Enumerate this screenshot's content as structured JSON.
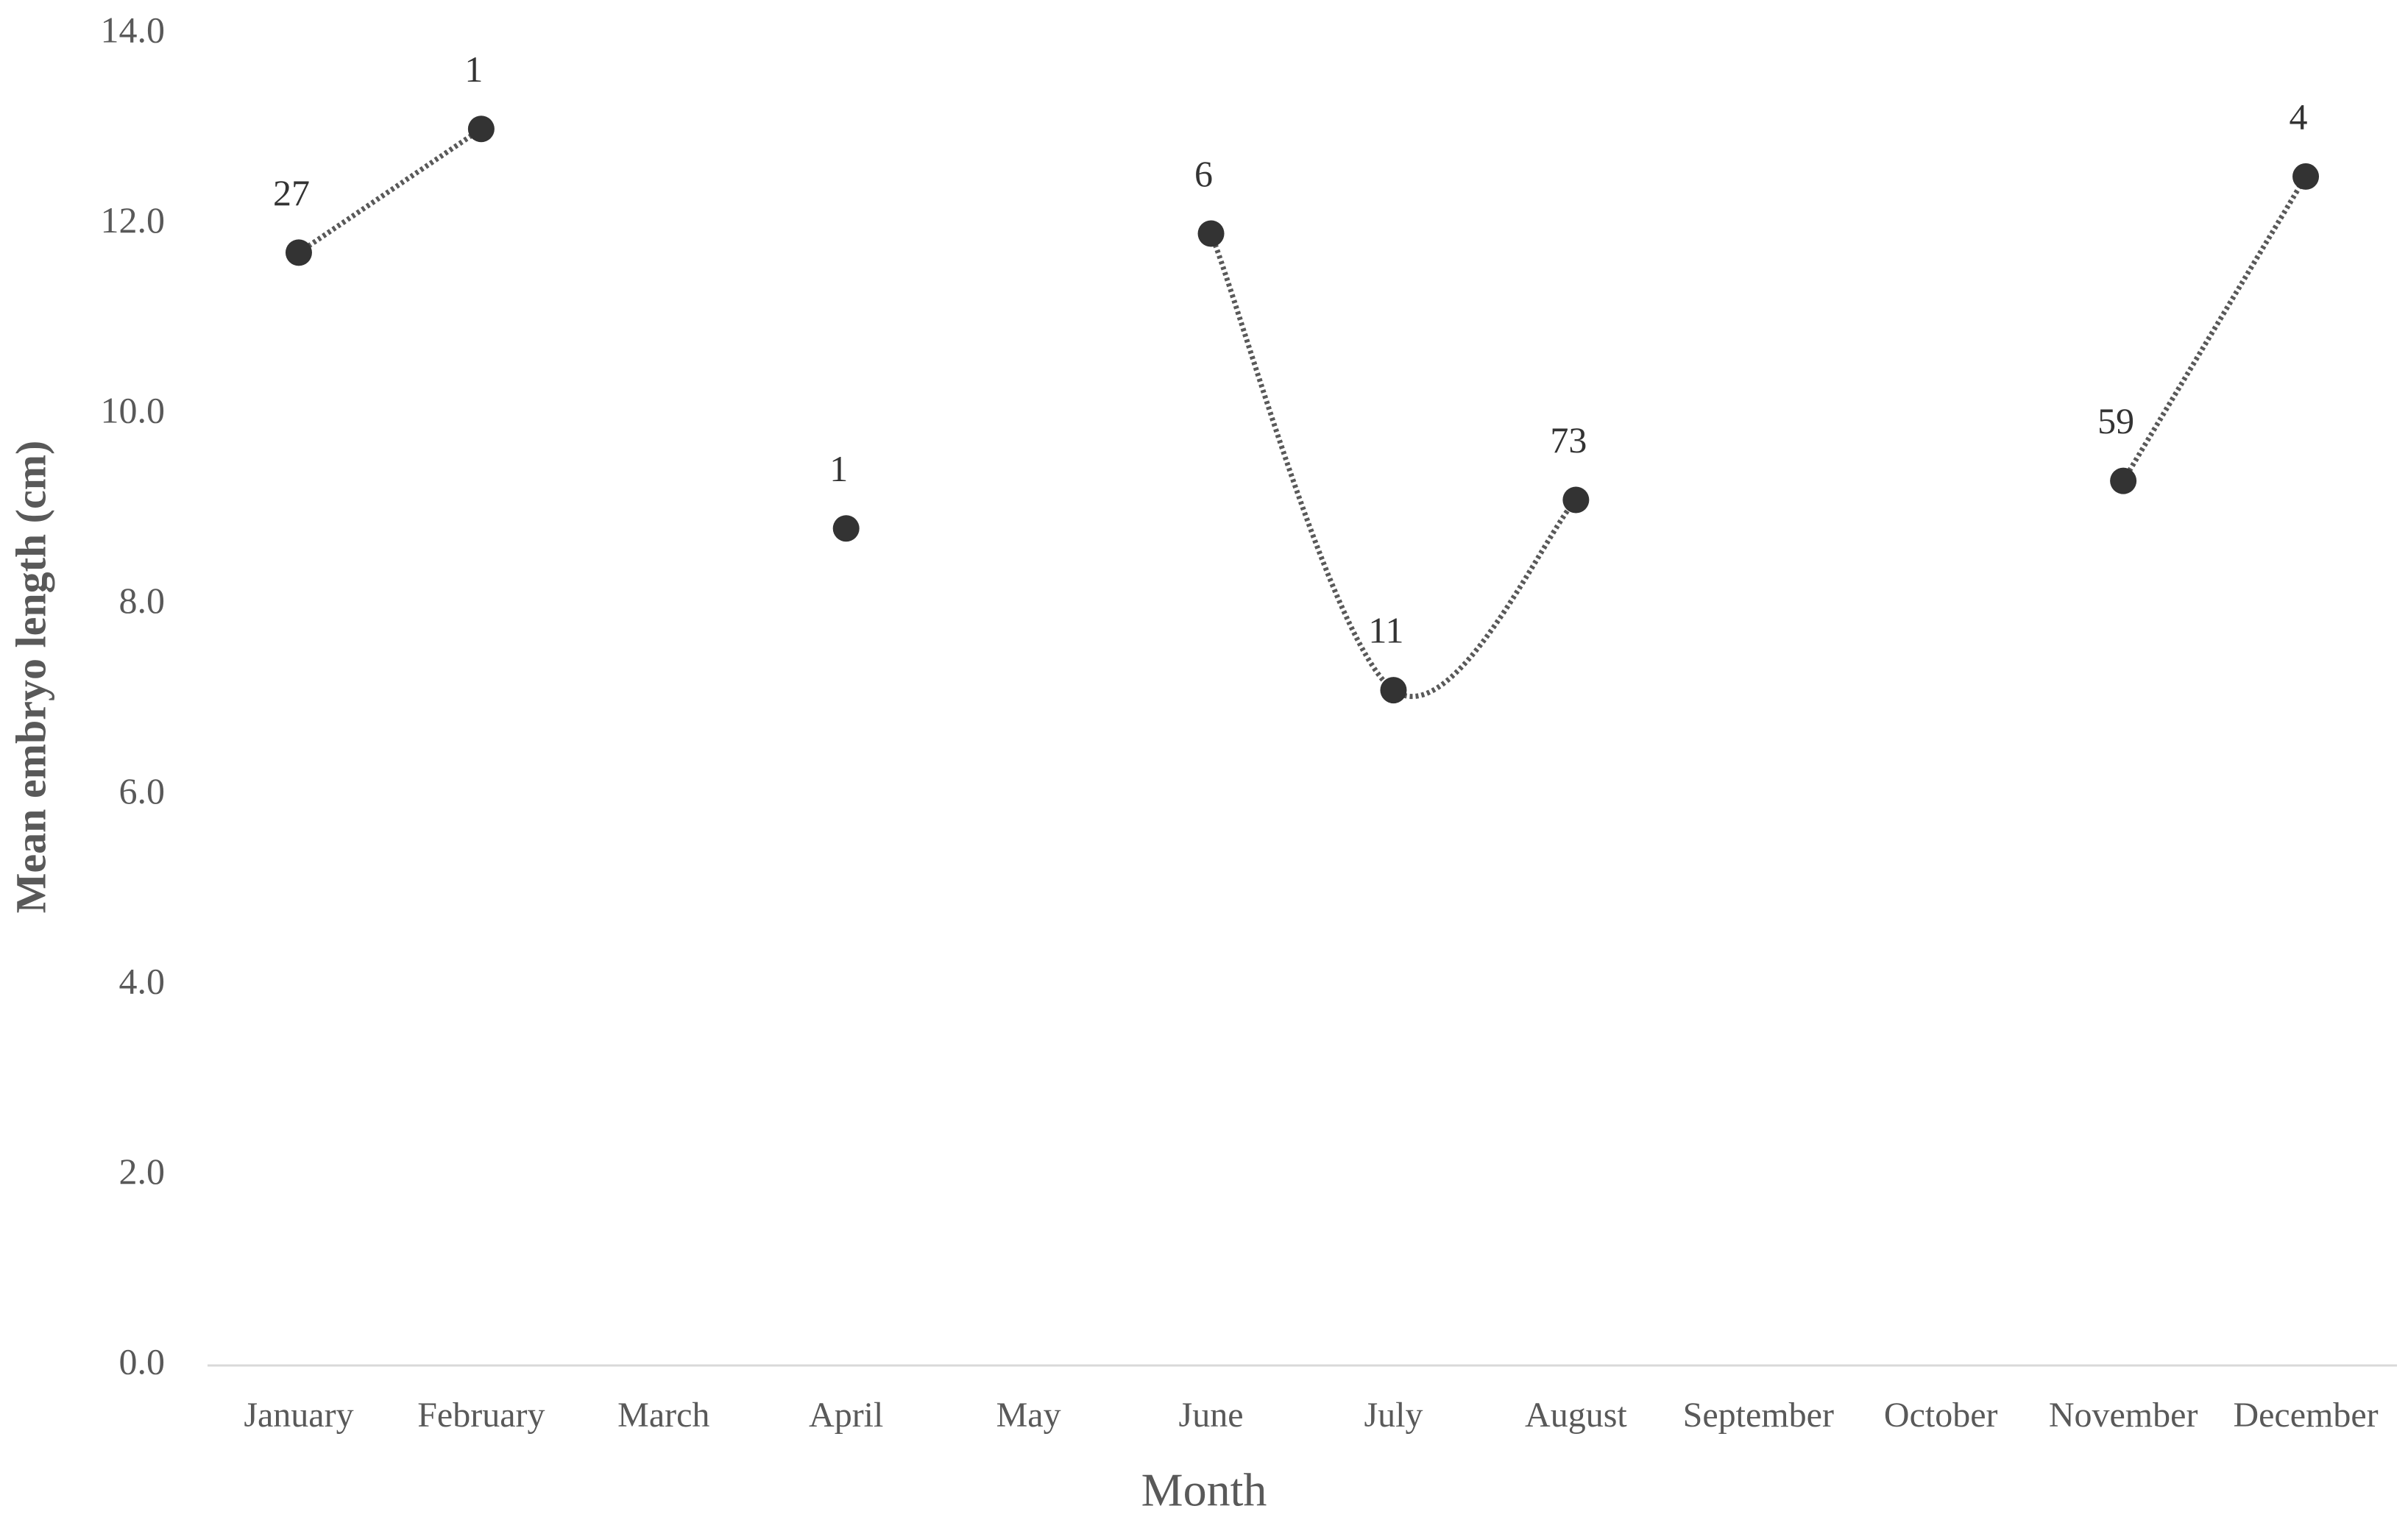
{
  "chart_data": {
    "type": "line",
    "x_label": "Month",
    "y_label": "Mean embryo length (cm)",
    "categories": [
      "January",
      "February",
      "March",
      "April",
      "May",
      "June",
      "July",
      "August",
      "September",
      "October",
      "November",
      "December"
    ],
    "series": [
      {
        "name": "Mean embryo length",
        "color": "#333333",
        "values": [
          11.7,
          13.0,
          null,
          8.8,
          null,
          11.9,
          7.1,
          9.1,
          null,
          null,
          9.3,
          12.5
        ]
      }
    ],
    "sample_sizes": [
      27,
      1,
      null,
      1,
      null,
      6,
      11,
      73,
      null,
      null,
      59,
      4
    ],
    "ylim": [
      0,
      14
    ],
    "yticks": [
      {
        "value": 0,
        "label": "0.0"
      },
      {
        "value": 2,
        "label": "2.0"
      },
      {
        "value": 4,
        "label": "4.0"
      },
      {
        "value": 6,
        "label": "6.0"
      },
      {
        "value": 8,
        "label": "8.0"
      },
      {
        "value": 10,
        "label": "10.0"
      },
      {
        "value": 12,
        "label": "12.0"
      },
      {
        "value": 14,
        "label": "14.0"
      }
    ],
    "line_style": "dotted",
    "smooth": true
  }
}
